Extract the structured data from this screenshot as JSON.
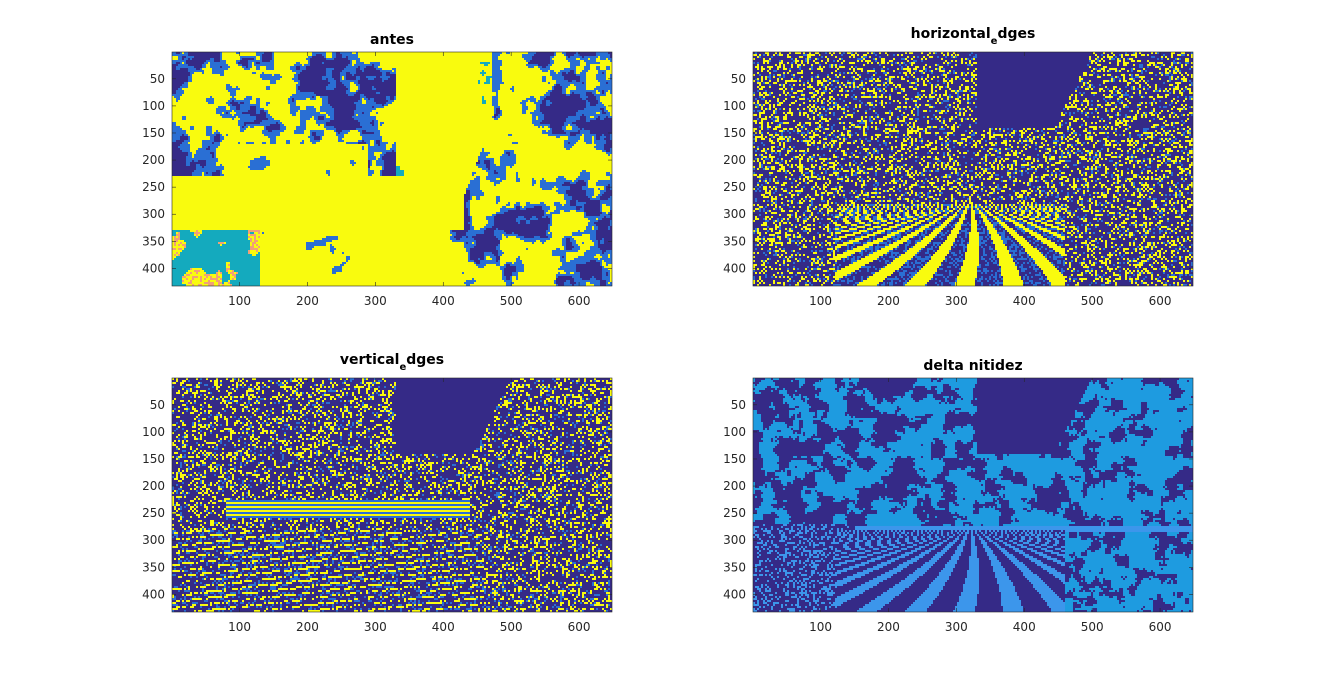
{
  "chart_data": [
    {
      "type": "heatmap",
      "title": "antes",
      "title_parts": [
        "antes"
      ],
      "xlabel": "",
      "ylabel": "",
      "xlim": [
        0.5,
        648.5
      ],
      "ylim": [
        0.5,
        432.5
      ],
      "x_ticks": [
        100,
        200,
        300,
        400,
        500,
        600
      ],
      "y_ticks": [
        50,
        100,
        150,
        200,
        250,
        300,
        350,
        400
      ],
      "colormap": "parula",
      "dominant_colors": [
        "#f9fb0e",
        "#352a87",
        "#2a6fd4"
      ],
      "scene": "antes"
    },
    {
      "type": "heatmap",
      "title": "horizontal_edges",
      "title_parts": [
        "horizontal",
        "e",
        "dges"
      ],
      "xlabel": "",
      "ylabel": "",
      "xlim": [
        0.5,
        648.5
      ],
      "ylim": [
        0.5,
        432.5
      ],
      "x_ticks": [
        100,
        200,
        300,
        400,
        500,
        600
      ],
      "y_ticks": [
        50,
        100,
        150,
        200,
        250,
        300,
        350,
        400
      ],
      "colormap": "parula",
      "dominant_colors": [
        "#352a87",
        "#f9fb0e",
        "#2a6fd4"
      ],
      "scene": "horizontal"
    },
    {
      "type": "heatmap",
      "title": "vertical_edges",
      "title_parts": [
        "vertical",
        "e",
        "dges"
      ],
      "xlabel": "",
      "ylabel": "",
      "xlim": [
        0.5,
        648.5
      ],
      "ylim": [
        0.5,
        432.5
      ],
      "x_ticks": [
        100,
        200,
        300,
        400,
        500,
        600
      ],
      "y_ticks": [
        50,
        100,
        150,
        200,
        250,
        300,
        350,
        400
      ],
      "colormap": "parula",
      "dominant_colors": [
        "#352a87",
        "#f9fb0e",
        "#2a6fd4"
      ],
      "scene": "vertical"
    },
    {
      "type": "heatmap",
      "title": "delta nitidez",
      "title_parts": [
        "delta nitidez"
      ],
      "xlabel": "",
      "ylabel": "",
      "xlim": [
        0.5,
        648.5
      ],
      "ylim": [
        0.5,
        432.5
      ],
      "x_ticks": [
        100,
        200,
        300,
        400,
        500,
        600
      ],
      "y_ticks": [
        50,
        100,
        150,
        200,
        250,
        300,
        350,
        400
      ],
      "colormap": "parula",
      "dominant_colors": [
        "#352a87",
        "#1e9be0"
      ],
      "scene": "delta"
    }
  ]
}
